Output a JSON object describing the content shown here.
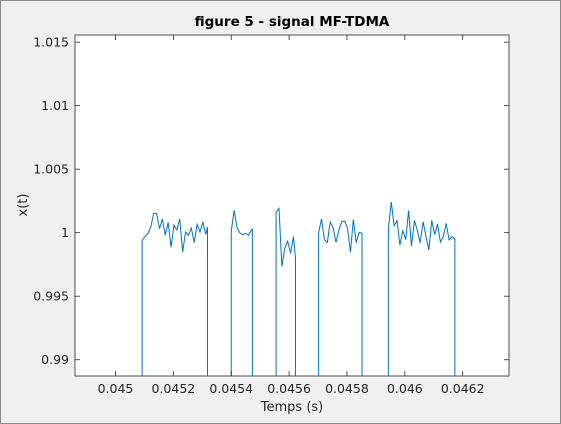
{
  "chart_data": {
    "type": "line",
    "title": "figure 5 - signal MF-TDMA",
    "xlabel": "Temps (s)",
    "ylabel": "x(t)",
    "xlim": [
      0.04486,
      0.04636
    ],
    "ylim": [
      0.98872,
      1.01556
    ],
    "xticks": [
      0.045,
      0.0452,
      0.0454,
      0.0456,
      0.0458,
      0.046,
      0.0462
    ],
    "xtick_labels": [
      "0.045",
      "0.0452",
      "0.0454",
      "0.0456",
      "0.0458",
      "0.046",
      "0.0462"
    ],
    "yticks": [
      0.99,
      0.995,
      1.0,
      1.005,
      1.01,
      1.015
    ],
    "ytick_labels": [
      "0.99",
      "0.995",
      "1",
      "1.005",
      "1.01",
      "1.015"
    ],
    "grid": false,
    "series": [
      {
        "color": "#0072bd",
        "segments": [
          {
            "x": [
              0.045092,
              0.045092,
              0.045102,
              0.045112,
              0.045122,
              0.045132,
              0.045142,
              0.045152,
              0.045162,
              0.045172,
              0.045182,
              0.045192,
              0.045202,
              0.045212,
              0.045222,
              0.045232,
              0.045242,
              0.045252,
              0.045262,
              0.045272,
              0.045282,
              0.045292,
              0.045302,
              0.045312,
              0.045318,
              0.045318
            ],
            "y": [
              0.98872,
              0.9994,
              0.99968,
              0.99993,
              1.00045,
              1.00153,
              1.00152,
              1.00032,
              1.00108,
              0.99981,
              1.00081,
              0.99885,
              1.00059,
              1.00021,
              1.00108,
              0.99847,
              1.00007,
              0.99978,
              1.00037,
              0.99923,
              1.00065,
              1.00006,
              1.00082,
              0.99987,
              1.00044,
              0.98872
            ]
          },
          {
            "x": [
              0.0454,
              0.0454,
              0.04541,
              0.04542,
              0.04543,
              0.04544,
              0.04545,
              0.04546,
              0.04547,
              0.045473,
              0.045473
            ],
            "y": [
              0.98872,
              1.00009,
              1.00176,
              1.00042,
              0.99997,
              0.99984,
              0.99995,
              0.9998,
              1.00023,
              1.00028,
              0.98872
            ]
          },
          {
            "x": [
              0.045555,
              0.045555,
              0.045565,
              0.045575,
              0.045585,
              0.045595,
              0.045605,
              0.045615,
              0.045622,
              0.045622
            ],
            "y": [
              0.98872,
              1.0016,
              1.00191,
              0.99734,
              0.99877,
              0.99934,
              0.99837,
              0.99969,
              0.99802,
              0.98872
            ]
          },
          {
            "x": [
              0.045702,
              0.045702,
              0.045712,
              0.045722,
              0.045732,
              0.045742,
              0.045752,
              0.045762,
              0.045772,
              0.045782,
              0.045792,
              0.045802,
              0.045812,
              0.045822,
              0.045832,
              0.045842,
              0.045852,
              0.045852
            ],
            "y": [
              0.98872,
              1.00001,
              1.00108,
              0.99945,
              0.99922,
              1.00084,
              1.0004,
              0.99924,
              1.0002,
              1.00088,
              1.00092,
              1.00035,
              0.99846,
              1.00103,
              0.99921,
              1.00003,
              0.99996,
              0.98872
            ]
          },
          {
            "x": [
              0.045943,
              0.045943,
              0.045953,
              0.045963,
              0.045973,
              0.045983,
              0.045993,
              0.046003,
              0.046013,
              0.046023,
              0.046033,
              0.046043,
              0.046053,
              0.046063,
              0.046073,
              0.046083,
              0.046093,
              0.046103,
              0.046113,
              0.046123,
              0.046133,
              0.046143,
              0.046153,
              0.046163,
              0.046173,
              0.046173
            ],
            "y": [
              0.98872,
              1.0003,
              1.00242,
              1.00055,
              1.00095,
              0.99902,
              1.00017,
              0.99946,
              1.00175,
              0.99895,
              1.00096,
              1.0002,
              0.9992,
              1.00087,
              0.99971,
              0.99865,
              1.00097,
              0.99985,
              1.00067,
              0.99926,
              0.99969,
              1.00073,
              0.99942,
              0.99968,
              0.9995,
              0.98872
            ]
          }
        ]
      }
    ]
  }
}
